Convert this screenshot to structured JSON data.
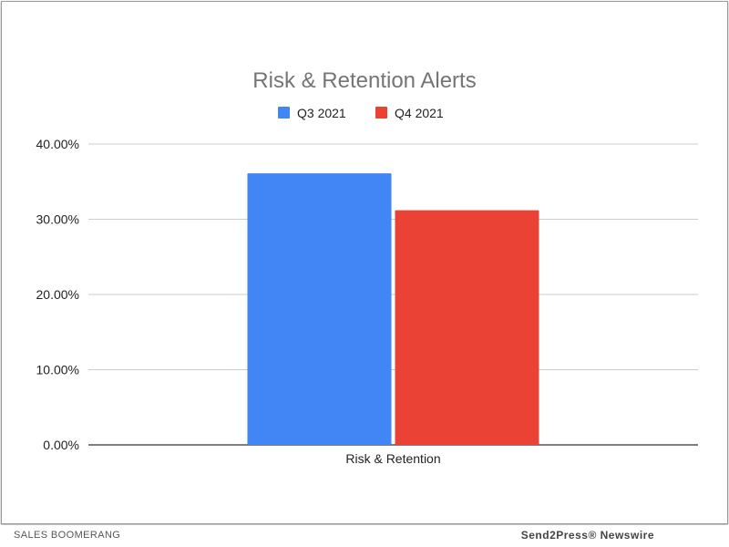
{
  "chart_data": {
    "type": "bar",
    "title": "Risk & Retention Alerts",
    "categories": [
      "Risk & Retention"
    ],
    "series": [
      {
        "name": "Q3 2021",
        "values": [
          36.1
        ],
        "color": "#4285f4"
      },
      {
        "name": "Q4 2021",
        "values": [
          31.2
        ],
        "color": "#ea4335"
      }
    ],
    "yticks": [
      "0.00%",
      "10.00%",
      "20.00%",
      "30.00%",
      "40.00%"
    ],
    "ytick_values": [
      0,
      10,
      20,
      30,
      40
    ],
    "ylim": [
      0,
      40
    ],
    "xlabel": "",
    "ylabel": "",
    "grid": true,
    "legend_position": "top-center"
  },
  "footer": {
    "left": "SALES BOOMERANG",
    "right": "Send2Press® Newswire"
  }
}
